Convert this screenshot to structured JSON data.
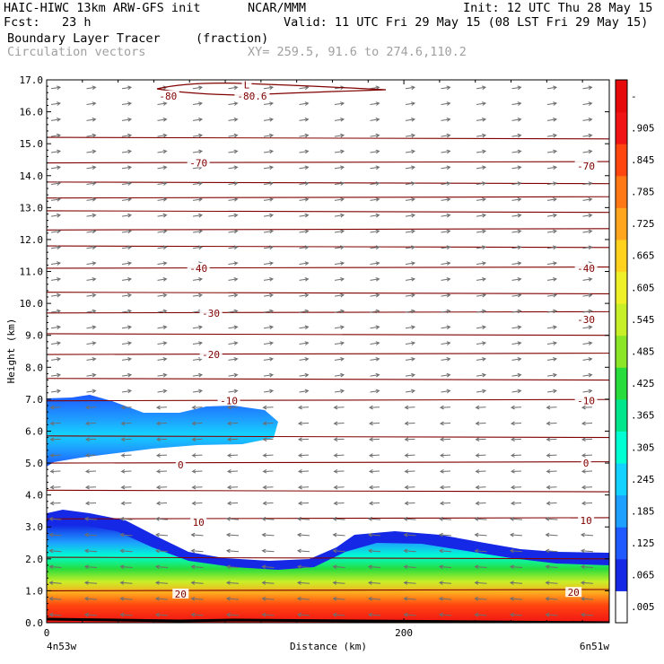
{
  "header": {
    "model": "HAIC-HIWC 13km ARW-GFS init",
    "org": "NCAR/MMM",
    "init": "Init: 12 UTC Thu 28 May 15",
    "fcst": "Fcst:   23 h",
    "valid": "Valid: 11 UTC Fri 29 May 15 (08 LST Fri 29 May 15)",
    "field1": "Boundary Layer Tracer",
    "field1_units": "(fraction)",
    "field2": "Circulation vectors",
    "xy": "XY= 259.5, 91.6 to 274.6,110.2"
  },
  "chart_data": {
    "type": "heatmap",
    "xlabel": "Distance (km)",
    "ylabel": "Height (km)",
    "ylim": [
      0,
      17
    ],
    "xlim": [
      0,
      315
    ],
    "y_ticks": [
      "0.0",
      "1.0",
      "2.0",
      "3.0",
      "4.0",
      "5.0",
      "6.0",
      "7.0",
      "8.0",
      "9.0",
      "10.0",
      "11.0",
      "12.0",
      "13.0",
      "14.0",
      "15.0",
      "16.0",
      "17.0"
    ],
    "x_ticks": [
      {
        "value": 0,
        "label": "0"
      },
      {
        "value": 200,
        "label": "200"
      }
    ],
    "x_end_labels": {
      "left": "4n53w",
      "right": "6n51w"
    },
    "colorbar": {
      "labels": [
        ".005",
        ".065",
        ".125",
        ".185",
        ".245",
        ".305",
        ".365",
        ".425",
        ".485",
        ".545",
        ".605",
        ".665",
        ".725",
        ".785",
        ".845",
        ".905",
        "-"
      ],
      "colors": [
        "#ffffff",
        "#1428e6",
        "#1e5aff",
        "#1ea0ff",
        "#14d2ff",
        "#00ffd2",
        "#00e68c",
        "#28dc3c",
        "#8ce628",
        "#c8f028",
        "#f0f028",
        "#ffd21e",
        "#ffa51e",
        "#ff7814",
        "#ff460f",
        "#f01414",
        "#e60a0a"
      ]
    },
    "isotherm_labels": [
      {
        "label": "-80",
        "x": 68,
        "y": 16.5
      },
      {
        "label": "-80.6",
        "x": 115,
        "y": 16.5
      },
      {
        "label": "L",
        "x": 112,
        "y": 16.85
      },
      {
        "label": "-70",
        "x": 85,
        "y": 14.4
      },
      {
        "label": "-70",
        "x": 302,
        "y": 14.3
      },
      {
        "label": "-40",
        "x": 85,
        "y": 11.1
      },
      {
        "label": "-40",
        "x": 302,
        "y": 11.1
      },
      {
        "label": "-30",
        "x": 92,
        "y": 9.7
      },
      {
        "label": "-30",
        "x": 302,
        "y": 9.5
      },
      {
        "label": "-20",
        "x": 92,
        "y": 8.4
      },
      {
        "label": "-10",
        "x": 102,
        "y": 6.95
      },
      {
        "label": "-10",
        "x": 302,
        "y": 6.95
      },
      {
        "label": "0",
        "x": 75,
        "y": 4.95
      },
      {
        "label": "0",
        "x": 302,
        "y": 5.0
      },
      {
        "label": "10",
        "x": 85,
        "y": 3.15
      },
      {
        "label": "10",
        "x": 302,
        "y": 3.2
      },
      {
        "label": "20",
        "x": 75,
        "y": 0.9
      },
      {
        "label": "20",
        "x": 295,
        "y": 0.95
      }
    ],
    "isotherm_levels_km": [
      1.0,
      2.05,
      3.25,
      4.15,
      5.0,
      5.85,
      6.95,
      7.65,
      8.4,
      9.05,
      9.7,
      10.35,
      11.1,
      11.8,
      12.3,
      12.9,
      13.3,
      13.8,
      14.4,
      15.2
    ]
  }
}
